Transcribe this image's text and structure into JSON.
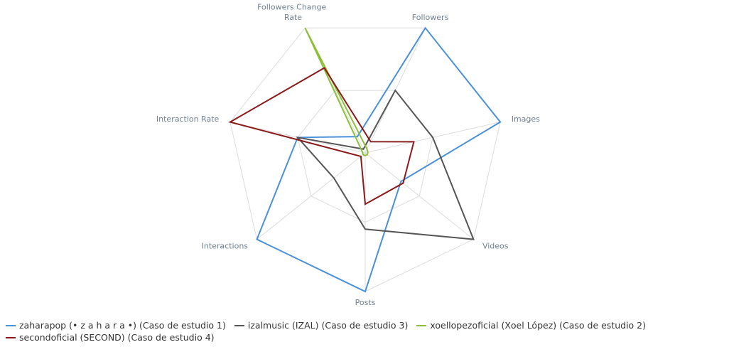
{
  "chart_data": {
    "type": "radar",
    "categories": [
      "Followers",
      "Images",
      "Videos",
      "Posts",
      "Interactions",
      "Interaction Rate",
      "Followers Change Rate"
    ],
    "series": [
      {
        "name": "zaharapop (• z a h a r a •) (Caso de estudio 1)",
        "color": "#4a90d9",
        "values": [
          100,
          100,
          33,
          100,
          100,
          50,
          13
        ]
      },
      {
        "name": "izalmusic (IZAL) (Caso de estudio 3)",
        "color": "#555555",
        "values": [
          50,
          50,
          100,
          55,
          29,
          50,
          3
        ]
      },
      {
        "name": "xoellopezoficial (Xoel López) (Caso de estudio 2)",
        "color": "#8dc03a",
        "values": [
          3,
          2,
          2,
          2,
          2,
          2,
          100
        ]
      },
      {
        "name": "secondoficial (SECOND) (Caso de estudio 4)",
        "color": "#8b1a1a",
        "values": [
          9,
          36,
          35,
          37,
          4,
          100,
          68
        ]
      }
    ],
    "ylim": [
      0,
      100
    ],
    "yticks": [
      50,
      100
    ],
    "grid": true
  }
}
